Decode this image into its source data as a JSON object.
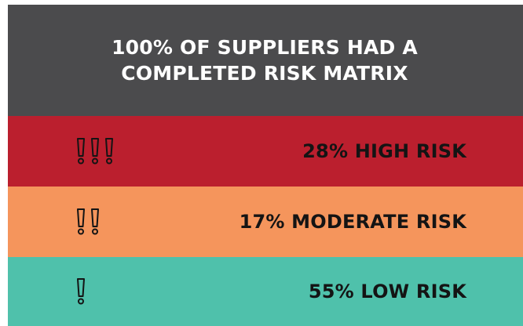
{
  "header": {
    "title": "100% OF SUPPLIERS HAD A COMPLETED RISK MATRIX"
  },
  "rows": [
    {
      "label": "28% HIGH RISK",
      "percent": 28,
      "icon_count": 3,
      "icon": "exclamation-icon",
      "background": "#bb1f2e"
    },
    {
      "label": "17% MODERATE RISK",
      "percent": 17,
      "icon_count": 2,
      "icon": "exclamation-icon",
      "background": "#f5955c"
    },
    {
      "label": "55% LOW RISK",
      "percent": 55,
      "icon_count": 1,
      "icon": "exclamation-icon",
      "background": "#4fc1ab"
    }
  ],
  "colors": {
    "header_background": "#4b4b4d",
    "header_text": "#ffffff",
    "row_text": "#141414"
  }
}
